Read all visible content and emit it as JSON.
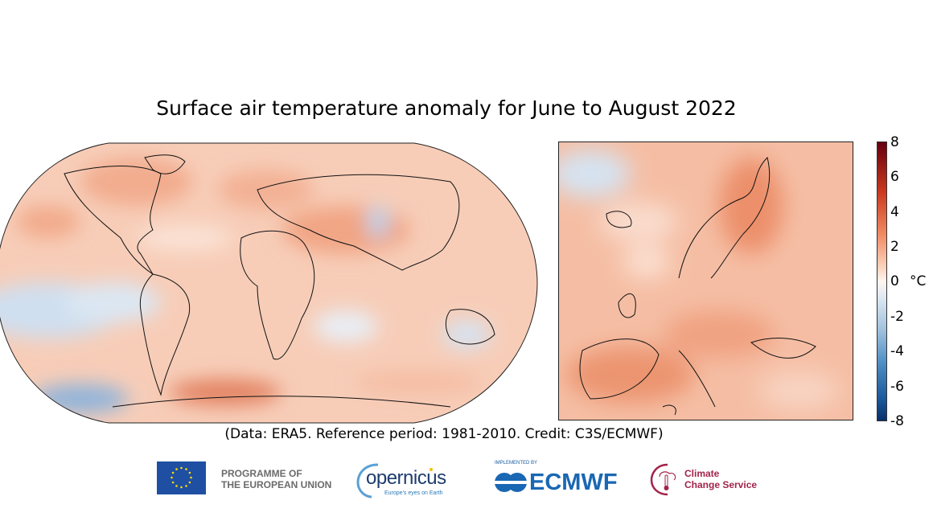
{
  "title": "Surface air temperature anomaly for June to August 2022",
  "caption": "(Data: ERA5.  Reference period: 1981-2010.  Credit: C3S/ECMWF)",
  "colorbar": {
    "ticks": [
      "8",
      "6",
      "4",
      "2",
      "0",
      "-2",
      "-4",
      "-6",
      "-8"
    ],
    "unit": "°C",
    "range": [
      -8,
      8
    ],
    "colors": {
      "max": "#67000d",
      "warm": "#f08a62",
      "zero": "#fff5ef",
      "cool": "#9dbfdc",
      "min": "#08306b"
    }
  },
  "maps": {
    "world": {
      "projection": "Robinson",
      "region": "Global"
    },
    "europe": {
      "region": "Europe"
    }
  },
  "logos": {
    "eu_text_line1": "PROGRAMME OF",
    "eu_text_line2": "THE EUROPEAN UNION",
    "copernicus_word": "opernicus",
    "copernicus_tagline": "Europe's eyes on Earth",
    "implemented_by": "IMPLEMENTED BY",
    "ecmwf": "ECMWF",
    "c3s_line1": "Climate",
    "c3s_line2": "Change Service"
  }
}
